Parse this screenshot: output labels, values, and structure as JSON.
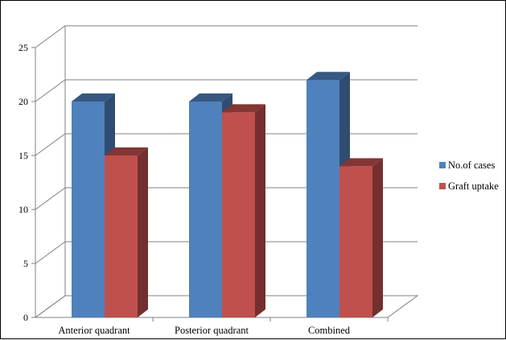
{
  "chart_data": {
    "type": "bar",
    "categories": [
      "Anterior quadrant",
      "Posterior quadrant",
      "Combined"
    ],
    "series": [
      {
        "name": "No.of cases",
        "values": [
          20,
          20,
          22
        ],
        "color": "#4F81BD"
      },
      {
        "name": "Graft uptake",
        "values": [
          15,
          19,
          14
        ],
        "color": "#C0504D"
      }
    ],
    "yticks": [
      "0",
      "5",
      "10",
      "15",
      "20",
      "25"
    ],
    "ylim": [
      0,
      25
    ],
    "grid": true,
    "style": "3d-column",
    "legend": "right"
  }
}
